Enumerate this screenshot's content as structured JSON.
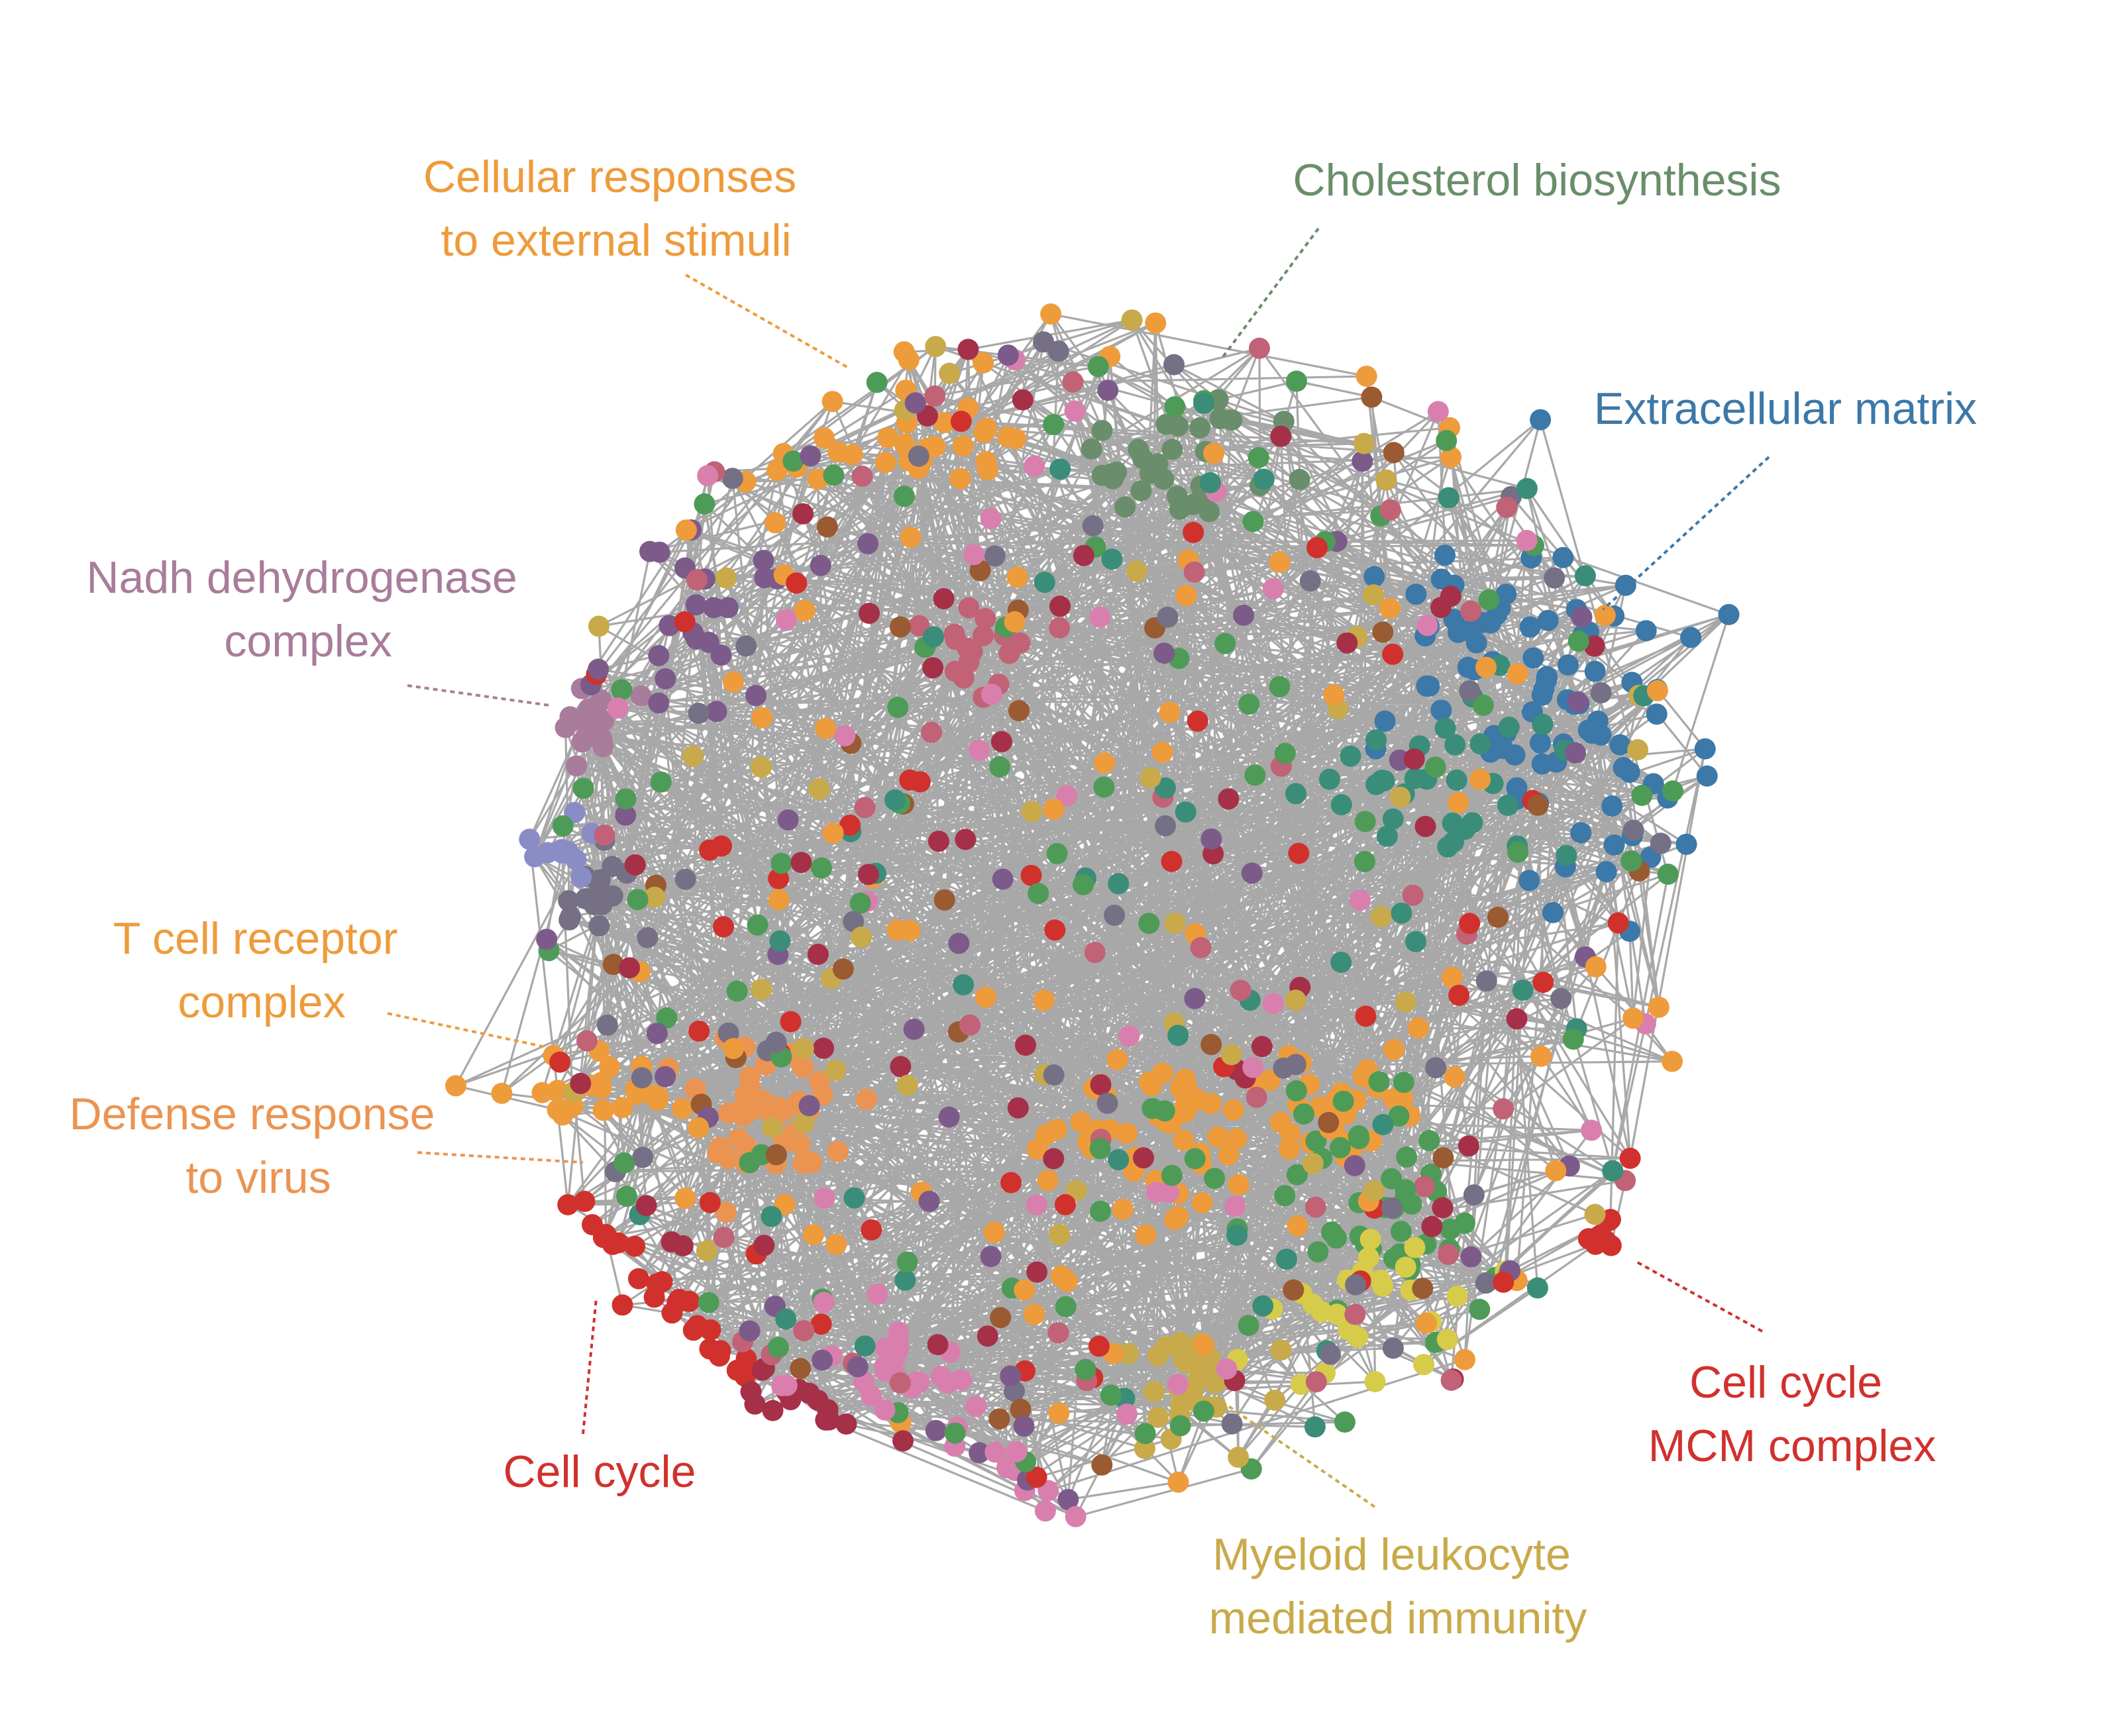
{
  "colors": {
    "edge": "#999999",
    "orange": "#EE9B3B",
    "peach": "#EB9452",
    "green_gray": "#6A8E6B",
    "blue": "#3C78A8",
    "mauve": "#A87C9A",
    "red": "#D0312D",
    "gold": "#C9AA4A",
    "green": "#4E9B57",
    "teal": "#3A8D79",
    "purple": "#7C5B8A",
    "pink": "#D97FAE",
    "rose": "#C16276",
    "brown": "#9A5A32",
    "slate": "#757085",
    "maroon": "#A63048",
    "yellow": "#D7CB4A",
    "periwinkle": "#8A8CC6"
  },
  "labels": [
    {
      "key": "cellular",
      "lines": [
        "Cellular responses",
        "to external stimuli"
      ],
      "color": "#EE9B3B"
    },
    {
      "key": "cholesterol",
      "lines": [
        "Cholesterol biosynthesis"
      ],
      "color": "#6A8E6B"
    },
    {
      "key": "ecm",
      "lines": [
        "Extracellular matrix"
      ],
      "color": "#3C78A8"
    },
    {
      "key": "nadh",
      "lines": [
        "Nadh dehydrogenase",
        "complex"
      ],
      "color": "#A87C9A"
    },
    {
      "key": "tcell",
      "lines": [
        "T cell receptor",
        "complex"
      ],
      "color": "#EE9B3B"
    },
    {
      "key": "defense",
      "lines": [
        "Defense response",
        "to virus"
      ],
      "color": "#EB9452"
    },
    {
      "key": "cellcycle",
      "lines": [
        "Cell cycle"
      ],
      "color": "#D0312D"
    },
    {
      "key": "myeloid",
      "lines": [
        "Myeloid leukocyte",
        "mediated immunity"
      ],
      "color": "#C9AA4A"
    },
    {
      "key": "mcm",
      "lines": [
        "Cell cycle",
        "MCM complex"
      ],
      "color": "#D0312D"
    }
  ]
}
